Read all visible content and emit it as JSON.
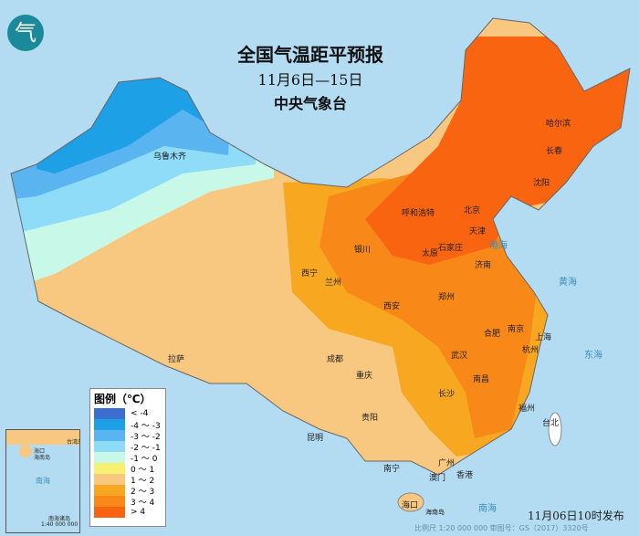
{
  "title": "全国气温距平预报",
  "date_range": "11月6日—15日",
  "agency": "中央气象台",
  "logo": "气",
  "legend": {
    "title": "图例（℃）",
    "items": [
      {
        "label": "< -4",
        "color": "#3a6fd0"
      },
      {
        "label": "-4 ～ -3",
        "color": "#1ea0e6"
      },
      {
        "label": "-3 ～ -2",
        "color": "#5ab4f0"
      },
      {
        "label": "-2 ～ -1",
        "color": "#8edcf8"
      },
      {
        "label": "-1 ～ 0",
        "color": "#c8f8e8"
      },
      {
        "label": "0 ～ 1",
        "color": "#f8f070"
      },
      {
        "label": "1 ～ 2",
        "color": "#f8c880"
      },
      {
        "label": "2 ～ 3",
        "color": "#f8a820"
      },
      {
        "label": "3 ～ 4",
        "color": "#f88818"
      },
      {
        "label": "> 4",
        "color": "#f86410"
      }
    ]
  },
  "cities": {
    "urumqi": "乌鲁木齐",
    "harbin": "哈尔滨",
    "changchun": "长春",
    "shenyang": "沈阳",
    "beijing": "北京",
    "tianjin": "天津",
    "hohhot": "呼和浩特",
    "shijiazhuang": "石家庄",
    "taiyuan": "太原",
    "jinan": "济南",
    "yinchuan": "银川",
    "xining": "西宁",
    "lanzhou": "兰州",
    "zhengzhou": "郑州",
    "xian": "西安",
    "nanjing": "南京",
    "shanghai": "上海",
    "hefei": "合肥",
    "hangzhou": "杭州",
    "wuhan": "武汉",
    "nanchang": "南昌",
    "changsha": "长沙",
    "chengdu": "成都",
    "chongqing": "重庆",
    "guiyang": "贵阳",
    "kunming": "昆明",
    "lhasa": "拉萨",
    "fuzhou": "福州",
    "taipei": "台北",
    "nanning": "南宁",
    "guangzhou": "广州",
    "macau": "澳门",
    "hongkong": "香港",
    "haikou": "海口",
    "hainan": "海南岛"
  },
  "seas": {
    "bohai": "渤海",
    "yellow": "黄海",
    "east": "东海",
    "south": "南海"
  },
  "inset": {
    "sea": "南海",
    "label": "南海诸岛",
    "scale": "1:40 000 000",
    "haikou": "海口",
    "hainan": "海南岛",
    "taiwan": "台湾岛"
  },
  "published": "11月06日10时发布",
  "footer": "比例尺 1:20 000 000    审图号：GS（2017）3320号"
}
